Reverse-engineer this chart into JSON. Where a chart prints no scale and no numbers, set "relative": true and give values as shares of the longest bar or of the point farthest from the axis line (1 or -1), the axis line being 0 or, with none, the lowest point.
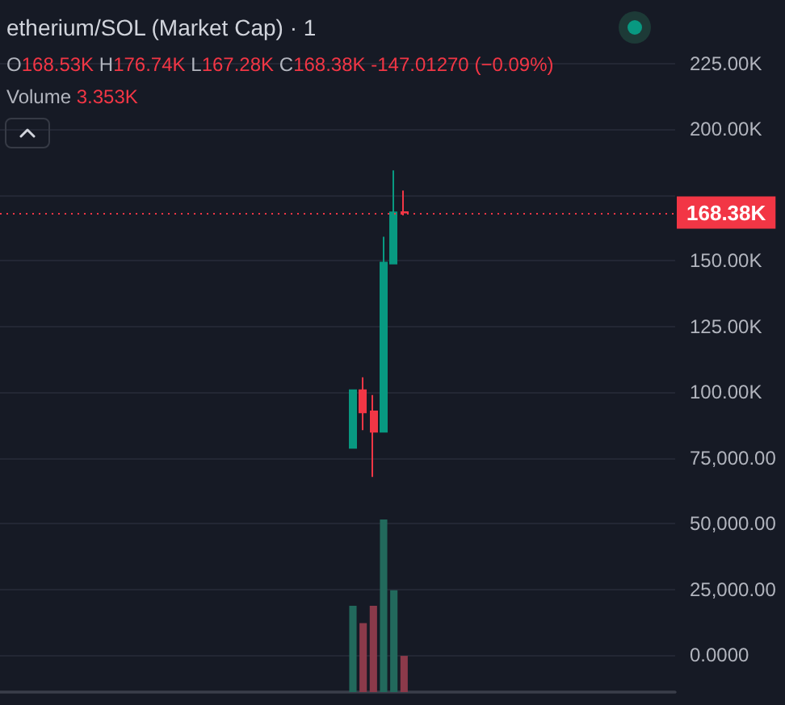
{
  "chart_data": [
    {
      "type": "candlestick",
      "title": "etherium/SOL (Market Cap) · 1",
      "annotations": [
        "O168.53K H176.74K L167.28K C168.38K -147.01270 (−0.09%)"
      ],
      "categories": [
        null,
        null,
        null,
        null,
        null,
        null,
        null,
        null,
        null,
        null,
        null,
        null,
        null,
        null,
        null,
        null,
        null,
        null,
        null,
        null,
        null,
        null,
        null,
        null,
        null,
        null,
        null,
        null,
        null,
        null,
        null,
        null,
        null,
        null,
        null,
        null,
        null,
        null,
        null,
        null,
        null,
        null,
        null,
        null,
        null,
        null,
        null,
        null,
        null,
        null,
        null,
        null,
        null,
        null,
        null,
        null,
        null,
        null,
        null,
        null,
        null,
        null,
        null,
        null,
        null,
        null
      ],
      "ohlc": [
        null,
        null,
        null,
        null,
        null,
        null,
        null,
        null,
        null,
        null,
        null,
        null,
        null,
        null,
        null,
        null,
        null,
        null,
        null,
        null,
        null,
        null,
        null,
        null,
        null,
        null,
        null,
        null,
        null,
        null,
        null,
        null,
        null,
        null,
        [
          78900,
          100800,
          78900,
          100800
        ],
        [
          100800,
          105700,
          85600,
          92400
        ],
        [
          92800,
          99000,
          67800,
          85000
        ],
        [
          85000,
          159200,
          85000,
          149400
        ],
        [
          149000,
          184400,
          149000,
          168500
        ],
        [
          168530,
          176740,
          167280,
          168380
        ],
        null,
        null,
        null,
        null,
        null,
        null,
        null,
        null,
        null,
        null,
        null,
        null,
        null,
        null,
        null,
        null,
        null,
        null,
        null,
        null,
        null,
        null,
        null,
        null,
        null,
        null
      ],
      "colors": [
        null,
        null,
        null,
        null,
        null,
        null,
        null,
        null,
        null,
        null,
        null,
        null,
        null,
        null,
        null,
        null,
        null,
        null,
        null,
        null,
        null,
        null,
        null,
        null,
        null,
        null,
        null,
        null,
        null,
        null,
        null,
        null,
        null,
        null,
        "#089981",
        "#f23645",
        "#f23645",
        "#089981",
        "#089981",
        "#f23645",
        null,
        null,
        null,
        null,
        null,
        null,
        null,
        null,
        null,
        null,
        null,
        null,
        null,
        null,
        null,
        null,
        null,
        null,
        null,
        null,
        null,
        null,
        null,
        null,
        null,
        null
      ],
      "ylim": [
        -14000,
        248000
      ],
      "yticks": [
        {
          "value": 0,
          "label": "0.0000"
        },
        {
          "value": 25000,
          "label": "25,000.00"
        },
        {
          "value": 50000,
          "label": "50,000.00"
        },
        {
          "value": 75000,
          "label": "75,000.00"
        },
        {
          "value": 100000,
          "label": "100.00K"
        },
        {
          "value": 125000,
          "label": "125.00K"
        },
        {
          "value": 150000,
          "label": "150.00K"
        },
        {
          "value": 175000,
          "label": null
        },
        {
          "value": 200000,
          "label": "200.00K"
        },
        {
          "value": 225000,
          "label": "225.00K"
        }
      ],
      "ref_lines": [
        {
          "axis": "y",
          "value": 168380,
          "label": "168.38K",
          "color": "#f23645",
          "line_style": "dotted"
        }
      ],
      "grid": "y",
      "tick_labels": "y"
    },
    {
      "type": "bar",
      "relative": true,
      "annotations": [
        "Volume 3.353K"
      ],
      "categories": [
        null,
        null,
        null,
        null,
        null,
        null,
        null,
        null,
        null,
        null,
        null,
        null,
        null,
        null,
        null,
        null,
        null,
        null,
        null,
        null,
        null,
        null,
        null,
        null,
        null,
        null,
        null,
        null,
        null,
        null,
        null,
        null,
        null,
        null,
        null,
        null,
        null,
        null,
        null,
        null,
        null,
        null,
        null,
        null,
        null,
        null,
        null,
        null,
        null,
        null,
        null,
        null,
        null,
        null,
        null,
        null,
        null,
        null,
        null,
        null,
        null,
        null,
        null,
        null,
        null,
        null
      ],
      "values": [
        null,
        null,
        null,
        null,
        null,
        null,
        null,
        null,
        null,
        null,
        null,
        null,
        null,
        null,
        null,
        null,
        null,
        null,
        null,
        null,
        null,
        null,
        null,
        null,
        null,
        null,
        null,
        null,
        null,
        null,
        null,
        null,
        null,
        null,
        0.5,
        0.4,
        0.5,
        1,
        0.59,
        0.21,
        null,
        null,
        null,
        null,
        null,
        null,
        null,
        null,
        null,
        null,
        null,
        null,
        null,
        null,
        null,
        null,
        null,
        null,
        null,
        null,
        null,
        null,
        null,
        null,
        null,
        null
      ],
      "colors": [
        null,
        null,
        null,
        null,
        null,
        null,
        null,
        null,
        null,
        null,
        null,
        null,
        null,
        null,
        null,
        null,
        null,
        null,
        null,
        null,
        null,
        null,
        null,
        null,
        null,
        null,
        null,
        null,
        null,
        null,
        null,
        null,
        null,
        null,
        "#22695c",
        "#8b3a4a",
        "#8b3a4a",
        "#22695c",
        "#22695c",
        "#8b3a4a",
        null,
        null,
        null,
        null,
        null,
        null,
        null,
        null,
        null,
        null,
        null,
        null,
        null,
        null,
        null,
        null,
        null,
        null,
        null,
        null,
        null,
        null,
        null,
        null,
        null,
        null
      ],
      "tick_labels": false
    }
  ]
}
